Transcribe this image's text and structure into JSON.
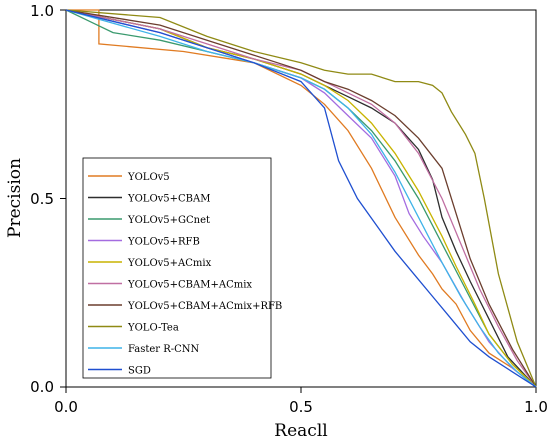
{
  "chart_data": {
    "type": "line",
    "title": "",
    "xlabel": "Reacll",
    "ylabel": "Precision",
    "xlim": [
      0.0,
      1.0
    ],
    "ylim": [
      0.0,
      1.0
    ],
    "xticks": [
      "0.0",
      "0.5",
      "1.0"
    ],
    "yticks": [
      "0.0",
      "0.5",
      "1.0"
    ],
    "grid": false,
    "legend_position": "lower-left",
    "series": [
      {
        "name": "YOLOv5",
        "color": "#e07b22",
        "x": [
          0.0,
          0.07,
          0.07,
          0.25,
          0.4,
          0.5,
          0.55,
          0.6,
          0.65,
          0.7,
          0.75,
          0.78,
          0.8,
          0.83,
          0.86,
          0.9,
          0.95,
          1.0
        ],
        "y": [
          1.0,
          1.0,
          0.91,
          0.89,
          0.86,
          0.8,
          0.75,
          0.68,
          0.58,
          0.45,
          0.35,
          0.3,
          0.26,
          0.22,
          0.15,
          0.09,
          0.05,
          0.0
        ]
      },
      {
        "name": "YOLOv5+CBAM",
        "color": "#2e2e2e",
        "x": [
          0.0,
          0.2,
          0.3,
          0.4,
          0.5,
          0.55,
          0.6,
          0.65,
          0.7,
          0.75,
          0.78,
          0.8,
          0.83,
          0.86,
          0.9,
          0.94,
          1.0
        ],
        "y": [
          1.0,
          0.95,
          0.9,
          0.87,
          0.83,
          0.8,
          0.77,
          0.74,
          0.7,
          0.63,
          0.55,
          0.45,
          0.36,
          0.28,
          0.18,
          0.08,
          0.0
        ]
      },
      {
        "name": "YOLOv5+GCnet",
        "color": "#3a9a6e",
        "x": [
          0.0,
          0.05,
          0.1,
          0.2,
          0.3,
          0.4,
          0.5,
          0.55,
          0.6,
          0.65,
          0.7,
          0.75,
          0.8,
          0.85,
          0.9,
          0.95,
          1.0
        ],
        "y": [
          1.0,
          0.97,
          0.94,
          0.92,
          0.89,
          0.86,
          0.82,
          0.79,
          0.74,
          0.68,
          0.6,
          0.5,
          0.38,
          0.26,
          0.14,
          0.06,
          0.0
        ]
      },
      {
        "name": "YOLOv5+RFB",
        "color": "#a46ce0",
        "x": [
          0.0,
          0.2,
          0.3,
          0.4,
          0.5,
          0.55,
          0.6,
          0.65,
          0.7,
          0.73,
          0.76,
          0.8,
          0.85,
          0.9,
          0.95,
          1.0
        ],
        "y": [
          1.0,
          0.94,
          0.9,
          0.86,
          0.82,
          0.78,
          0.72,
          0.66,
          0.56,
          0.46,
          0.4,
          0.33,
          0.22,
          0.12,
          0.05,
          0.0
        ]
      },
      {
        "name": "YOLOv5+ACmix",
        "color": "#c8b400",
        "x": [
          0.0,
          0.2,
          0.3,
          0.4,
          0.5,
          0.55,
          0.6,
          0.65,
          0.7,
          0.75,
          0.8,
          0.83,
          0.87,
          0.9,
          0.95,
          1.0
        ],
        "y": [
          1.0,
          0.95,
          0.9,
          0.87,
          0.83,
          0.8,
          0.76,
          0.7,
          0.62,
          0.52,
          0.4,
          0.32,
          0.22,
          0.14,
          0.06,
          0.0
        ]
      },
      {
        "name": "YOLOv5+CBAM+ACmix",
        "color": "#c06fa2",
        "x": [
          0.0,
          0.2,
          0.3,
          0.4,
          0.5,
          0.55,
          0.6,
          0.65,
          0.7,
          0.75,
          0.8,
          0.84,
          0.88,
          0.92,
          0.96,
          1.0
        ],
        "y": [
          1.0,
          0.95,
          0.91,
          0.87,
          0.84,
          0.81,
          0.78,
          0.75,
          0.7,
          0.62,
          0.5,
          0.38,
          0.26,
          0.16,
          0.07,
          0.0
        ]
      },
      {
        "name": "YOLOv5+CBAM+ACmix+RFB",
        "color": "#6b3e2e",
        "x": [
          0.0,
          0.2,
          0.3,
          0.4,
          0.5,
          0.55,
          0.6,
          0.65,
          0.7,
          0.75,
          0.8,
          0.83,
          0.86,
          0.9,
          0.95,
          1.0
        ],
        "y": [
          1.0,
          0.96,
          0.92,
          0.88,
          0.84,
          0.81,
          0.79,
          0.76,
          0.72,
          0.66,
          0.58,
          0.46,
          0.34,
          0.22,
          0.1,
          0.0
        ]
      },
      {
        "name": "YOLO-Tea",
        "color": "#8f8a14",
        "x": [
          0.0,
          0.2,
          0.3,
          0.4,
          0.5,
          0.55,
          0.6,
          0.65,
          0.7,
          0.75,
          0.78,
          0.8,
          0.82,
          0.85,
          0.87,
          0.89,
          0.92,
          0.96,
          1.0
        ],
        "y": [
          1.0,
          0.98,
          0.93,
          0.89,
          0.86,
          0.84,
          0.83,
          0.83,
          0.81,
          0.81,
          0.8,
          0.78,
          0.73,
          0.67,
          0.62,
          0.5,
          0.3,
          0.12,
          0.0
        ]
      },
      {
        "name": "Faster R-CNN",
        "color": "#3fb3e8",
        "x": [
          0.0,
          0.2,
          0.3,
          0.4,
          0.5,
          0.55,
          0.6,
          0.65,
          0.7,
          0.75,
          0.8,
          0.84,
          0.88,
          0.92,
          0.96,
          1.0
        ],
        "y": [
          1.0,
          0.93,
          0.89,
          0.86,
          0.82,
          0.79,
          0.74,
          0.67,
          0.57,
          0.45,
          0.33,
          0.24,
          0.16,
          0.09,
          0.04,
          0.0
        ]
      },
      {
        "name": "SGD",
        "color": "#1f4fd0",
        "x": [
          0.0,
          0.2,
          0.3,
          0.4,
          0.5,
          0.55,
          0.58,
          0.62,
          0.66,
          0.7,
          0.74,
          0.78,
          0.82,
          0.86,
          0.9,
          0.95,
          1.0
        ],
        "y": [
          1.0,
          0.94,
          0.9,
          0.86,
          0.81,
          0.74,
          0.6,
          0.5,
          0.43,
          0.36,
          0.3,
          0.24,
          0.18,
          0.12,
          0.08,
          0.04,
          0.0
        ]
      }
    ]
  }
}
